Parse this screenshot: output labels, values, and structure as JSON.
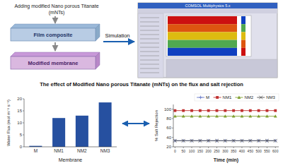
{
  "chart_data": [
    {
      "type": "bar",
      "title": "The effect of Modified Nano porous Titanate (mNTs) on the flux and salt rejection",
      "annotations": [
        "Adding modified Nano porous Titanate",
        "(mNTs)",
        "Film composite",
        "Modified membrane",
        "Simulation",
        "COMSOL Multiphysics 5.x"
      ],
      "categories": [
        "M",
        "NM1",
        "NM2",
        "NM3"
      ],
      "values": [
        0.4,
        12.0,
        13.0,
        18.5
      ],
      "color": "#2650a0",
      "xlabel": "Membrane",
      "ylabel": "Water Flux (mol m⁻² s⁻¹)",
      "ylim": [
        0,
        20
      ],
      "yticks": [
        0,
        5,
        10,
        15,
        20
      ],
      "grid": false
    },
    {
      "type": "line",
      "x": [
        0,
        50,
        100,
        150,
        200,
        250,
        300,
        350,
        400,
        450,
        500,
        550,
        600
      ],
      "series": [
        {
          "name": "M",
          "color": "#6878c8",
          "marker": "plus",
          "values": [
            33,
            33,
            33,
            33,
            33,
            33,
            33,
            33,
            33,
            33,
            33,
            33,
            33
          ]
        },
        {
          "name": "NM1",
          "color": "#c03030",
          "marker": "square",
          "values": [
            97,
            97,
            97,
            97,
            97,
            97,
            97,
            97,
            97,
            97,
            97,
            97,
            97
          ]
        },
        {
          "name": "NM2",
          "color": "#80a030",
          "marker": "triangle",
          "values": [
            85,
            85,
            85,
            85,
            85,
            85,
            85,
            85,
            85,
            85,
            85,
            85,
            85
          ]
        },
        {
          "name": "NM3",
          "color": "#505050",
          "marker": "x",
          "values": [
            33,
            33,
            33,
            33,
            33,
            33,
            33,
            33,
            33,
            33,
            33,
            33,
            33
          ]
        }
      ],
      "xlabel": "Time (min)",
      "ylabel": "% Salt Rejection",
      "xlim": [
        -10,
        620
      ],
      "xticks": [
        0,
        50,
        100,
        150,
        200,
        250,
        300,
        350,
        400,
        450,
        500,
        550,
        600
      ],
      "ylim": [
        20,
        110
      ],
      "yticks": [
        20,
        40,
        60,
        80,
        100
      ],
      "legend": "upper right",
      "grid": false
    }
  ]
}
